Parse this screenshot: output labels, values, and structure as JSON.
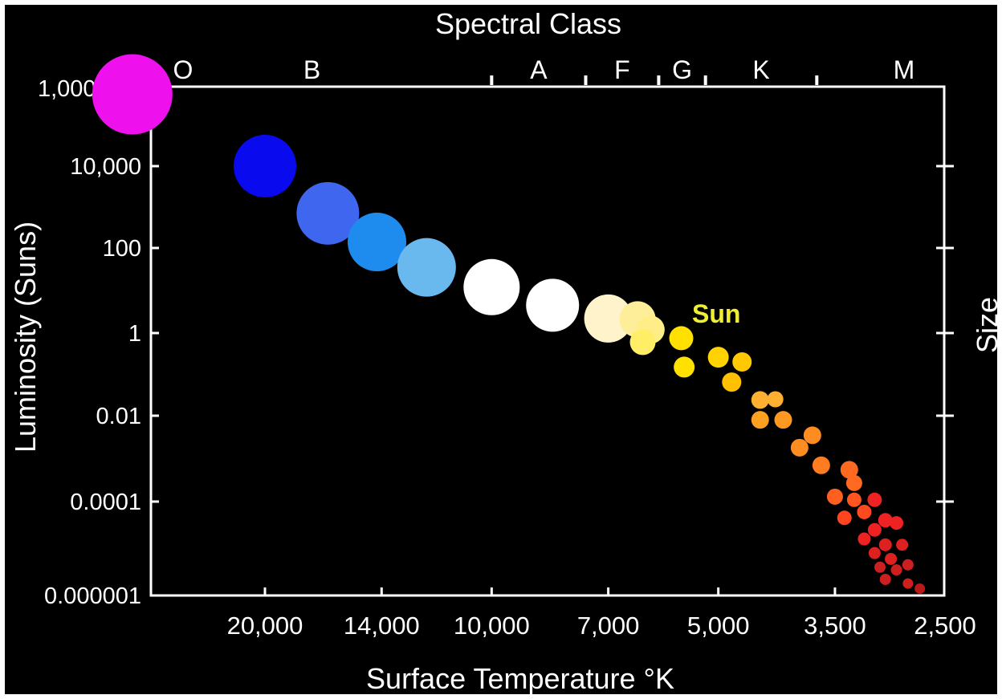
{
  "chart_data": {
    "type": "scatter",
    "title": "Spectral Class",
    "xlabel": "Surface Temperature °K",
    "ylabel": "Luminosity (Suns)",
    "right_label": "Size",
    "x_scale": "log",
    "y_scale": "log",
    "xlim": [
      40000,
      2250
    ],
    "ylim": [
      1e-06,
      1000000
    ],
    "x_ticks": [
      {
        "value": 20000,
        "label": "20,000"
      },
      {
        "value": 14000,
        "label": "14,000"
      },
      {
        "value": 10000,
        "label": "10,000"
      },
      {
        "value": 7000,
        "label": "7,000"
      },
      {
        "value": 5000,
        "label": "5,000"
      },
      {
        "value": 3500,
        "label": "3,500"
      },
      {
        "value": 2500,
        "label": "2,500"
      }
    ],
    "y_ticks": [
      {
        "value": 1000000,
        "label": "1,000,000"
      },
      {
        "value": 10000,
        "label": "10,000"
      },
      {
        "value": 100,
        "label": "100"
      },
      {
        "value": 1,
        "label": "1"
      },
      {
        "value": 0.01,
        "label": "0.01"
      },
      {
        "value": 0.0001,
        "label": "0.0001"
      },
      {
        "value": 1e-06,
        "label": "0.000001"
      }
    ],
    "spectral_classes": [
      "O",
      "B",
      "A",
      "F",
      "G",
      "K",
      "M"
    ],
    "spectral_boundaries_K": [
      30000,
      10000,
      7500,
      6000,
      5200,
      3700
    ],
    "annotations": [
      {
        "text": "Sun",
        "color": "#eeee33"
      }
    ],
    "grid": false,
    "legend": "none",
    "stars": [
      {
        "temp": 30000,
        "lum": 700000,
        "color": "#ee11ee",
        "size": 1.0
      },
      {
        "temp": 20000,
        "lum": 10000,
        "color": "#0a0aee",
        "size": 0.78
      },
      {
        "temp": 16500,
        "lum": 700,
        "color": "#3f66ee",
        "size": 0.78
      },
      {
        "temp": 14200,
        "lum": 140,
        "color": "#1e8cee",
        "size": 0.73
      },
      {
        "temp": 12200,
        "lum": 35,
        "color": "#6ab9ee",
        "size": 0.73
      },
      {
        "temp": 10000,
        "lum": 12,
        "color": "#ffffff",
        "size": 0.7
      },
      {
        "temp": 8300,
        "lum": 4.5,
        "color": "#ffffff",
        "size": 0.66
      },
      {
        "temp": 7000,
        "lum": 2.2,
        "color": "#fff3cc",
        "size": 0.6
      },
      {
        "temp": 6400,
        "lum": 2.1,
        "color": "#ffee99",
        "size": 0.45
      },
      {
        "temp": 6150,
        "lum": 1.2,
        "color": "#ffee88",
        "size": 0.35
      },
      {
        "temp": 6300,
        "lum": 0.6,
        "color": "#ffee66",
        "size": 0.32
      },
      {
        "temp": 5600,
        "lum": 0.75,
        "color": "#ffe000",
        "size": 0.3
      },
      {
        "temp": 5550,
        "lum": 0.15,
        "color": "#ffe000",
        "size": 0.26
      },
      {
        "temp": 5000,
        "lum": 0.26,
        "color": "#ffd200",
        "size": 0.26
      },
      {
        "temp": 4650,
        "lum": 0.2,
        "color": "#ffc800",
        "size": 0.24
      },
      {
        "temp": 4800,
        "lum": 0.065,
        "color": "#ffc000",
        "size": 0.24
      },
      {
        "temp": 4400,
        "lum": 0.024,
        "color": "#ffb030",
        "size": 0.22
      },
      {
        "temp": 4200,
        "lum": 0.025,
        "color": "#ffb030",
        "size": 0.2
      },
      {
        "temp": 4400,
        "lum": 0.008,
        "color": "#ffa020",
        "size": 0.22
      },
      {
        "temp": 4100,
        "lum": 0.008,
        "color": "#ff9820",
        "size": 0.22
      },
      {
        "temp": 3750,
        "lum": 0.0035,
        "color": "#ff8c20",
        "size": 0.22
      },
      {
        "temp": 3900,
        "lum": 0.0018,
        "color": "#ff8c20",
        "size": 0.22
      },
      {
        "temp": 3650,
        "lum": 0.0007,
        "color": "#ff7c20",
        "size": 0.22
      },
      {
        "temp": 3350,
        "lum": 0.00055,
        "color": "#ff6a20",
        "size": 0.22
      },
      {
        "temp": 3300,
        "lum": 0.00027,
        "color": "#ff6a20",
        "size": 0.2
      },
      {
        "temp": 3500,
        "lum": 0.00013,
        "color": "#ff6020",
        "size": 0.2
      },
      {
        "temp": 3300,
        "lum": 0.00011,
        "color": "#ff5520",
        "size": 0.18
      },
      {
        "temp": 3200,
        "lum": 6e-05,
        "color": "#ff4a20",
        "size": 0.18
      },
      {
        "temp": 3400,
        "lum": 4.5e-05,
        "color": "#ff4420",
        "size": 0.18
      },
      {
        "temp": 3100,
        "lum": 0.00011,
        "color": "#ee2222",
        "size": 0.18
      },
      {
        "temp": 3000,
        "lum": 4e-05,
        "color": "#ee2222",
        "size": 0.18
      },
      {
        "temp": 3100,
        "lum": 2.5e-05,
        "color": "#ee2222",
        "size": 0.17
      },
      {
        "temp": 2900,
        "lum": 3.5e-05,
        "color": "#ee2222",
        "size": 0.17
      },
      {
        "temp": 3200,
        "lum": 1.6e-05,
        "color": "#ee2222",
        "size": 0.16
      },
      {
        "temp": 3000,
        "lum": 1.2e-05,
        "color": "#dd2020",
        "size": 0.16
      },
      {
        "temp": 2850,
        "lum": 1.2e-05,
        "color": "#dd2020",
        "size": 0.15
      },
      {
        "temp": 3100,
        "lum": 8e-06,
        "color": "#dd2020",
        "size": 0.15
      },
      {
        "temp": 2950,
        "lum": 6e-06,
        "color": "#dd2020",
        "size": 0.15
      },
      {
        "temp": 3050,
        "lum": 4e-06,
        "color": "#cc2020",
        "size": 0.14
      },
      {
        "temp": 2900,
        "lum": 3.5e-06,
        "color": "#cc2020",
        "size": 0.14
      },
      {
        "temp": 2800,
        "lum": 4.5e-06,
        "color": "#cc2020",
        "size": 0.14
      },
      {
        "temp": 3000,
        "lum": 2.2e-06,
        "color": "#cc2020",
        "size": 0.14
      },
      {
        "temp": 2800,
        "lum": 1.8e-06,
        "color": "#cc2020",
        "size": 0.13
      },
      {
        "temp": 2700,
        "lum": 1.4e-06,
        "color": "#bb1818",
        "size": 0.13
      }
    ],
    "sun": {
      "temp": 5800,
      "lum": 1
    }
  }
}
